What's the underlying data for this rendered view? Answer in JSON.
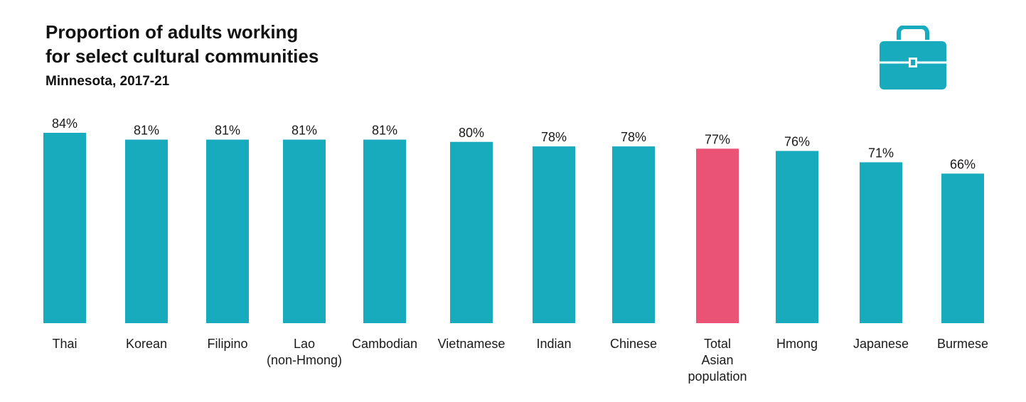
{
  "title": "Proportion of adults working\nfor select cultural communities",
  "subtitle": "Minnesota, 2017-21",
  "icon": "briefcase-icon",
  "colors": {
    "bar": "#17abbd",
    "highlight": "#ea5276",
    "icon": "#17abbd"
  },
  "chart_data": {
    "type": "bar",
    "title": "Proportion of adults working for select cultural communities",
    "subtitle": "Minnesota, 2017-21",
    "xlabel": "",
    "ylabel": "",
    "ylim": [
      0,
      84
    ],
    "grid": false,
    "categories": [
      "Thai",
      "Korean",
      "Filipino",
      "Lao\n(non-Hmong)",
      "Cambodian",
      "Vietnamese",
      "Indian",
      "Chinese",
      "Total\nAsian\npopulation",
      "Hmong",
      "Japanese",
      "Burmese"
    ],
    "values": [
      84,
      81,
      81,
      81,
      81,
      80,
      78,
      78,
      77,
      76,
      71,
      66
    ],
    "labels": [
      "84%",
      "81%",
      "81%",
      "81%",
      "81%",
      "80%",
      "78%",
      "78%",
      "77%",
      "76%",
      "71%",
      "66%"
    ],
    "highlight_index": 8
  }
}
